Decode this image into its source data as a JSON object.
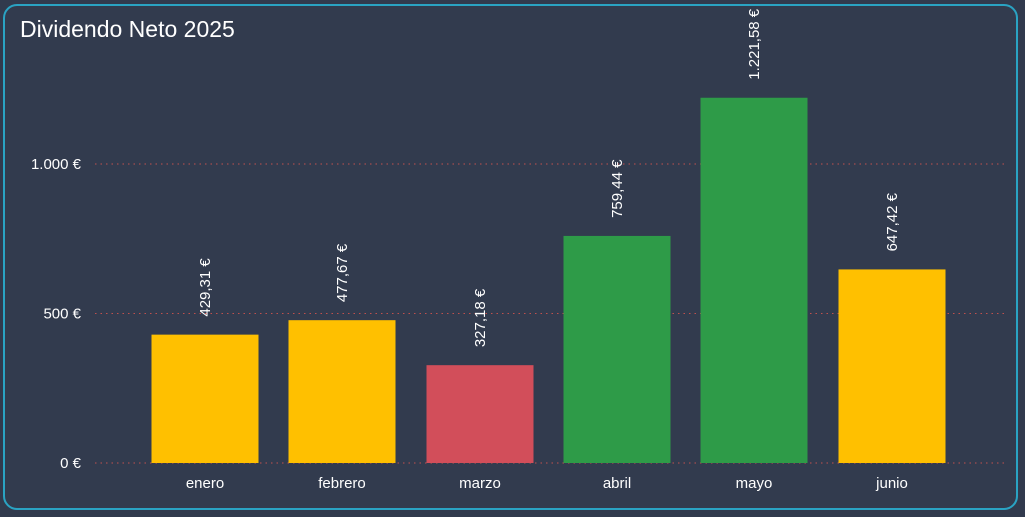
{
  "chart_data": {
    "type": "bar",
    "title": "Dividendo Neto 2025",
    "categories": [
      "enero",
      "febrero",
      "marzo",
      "abril",
      "mayo",
      "junio"
    ],
    "values": [
      429.31,
      477.67,
      327.18,
      759.44,
      1221.58,
      647.42
    ],
    "value_labels": [
      "429,31 €",
      "477,67 €",
      "327,18 €",
      "759,44 €",
      "1.221,58 €",
      "647,42 €"
    ],
    "bar_colors": [
      "#ffc000",
      "#ffc000",
      "#d24e5a",
      "#2e9b48",
      "#2e9b48",
      "#ffc000"
    ],
    "y_ticks": [
      {
        "value": 0,
        "label": "0 €"
      },
      {
        "value": 500,
        "label": "500 €"
      },
      {
        "value": 1000,
        "label": "1.000 €"
      }
    ],
    "ylim": [
      0,
      1300
    ],
    "grid": true,
    "grid_color": "#c0504d",
    "legend": "none"
  },
  "colors": {
    "background": "#313a4d",
    "card_border": "#2aa3c3",
    "text": "#ffffff"
  }
}
